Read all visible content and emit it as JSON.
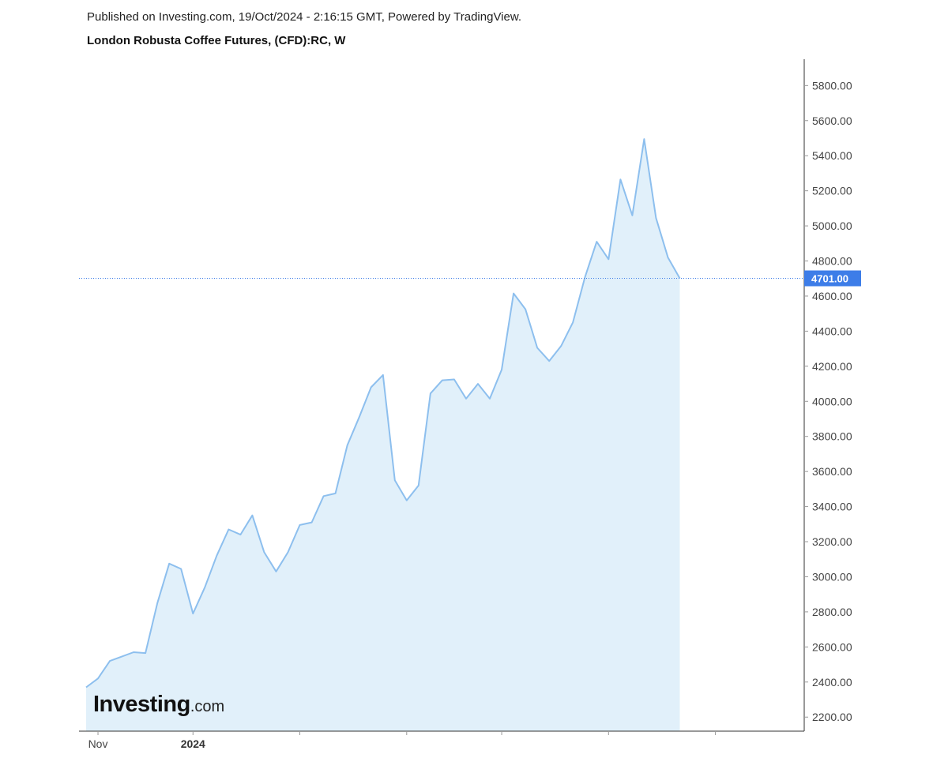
{
  "header": {
    "published": "Published on Investing.com, 19/Oct/2024 - 2:16:15 GMT, Powered by TradingView.",
    "title": "London Robusta Coffee Futures, (CFD):RC, W"
  },
  "logo": {
    "main": "Investing",
    "suffix": ".com"
  },
  "colors": {
    "line": "#8dbfee",
    "fill": "#e1f0fa",
    "last_price_bg": "#3d7de8",
    "axis": "#333333",
    "grid_tick": "#999999"
  },
  "chart_data": {
    "type": "area",
    "title": "London Robusta Coffee Futures, (CFD):RC, W",
    "xlabel": "",
    "ylabel": "",
    "ylim": [
      2120,
      5950
    ],
    "yticks": [
      "2200.00",
      "2400.00",
      "2600.00",
      "2800.00",
      "3000.00",
      "3200.00",
      "3400.00",
      "3600.00",
      "3800.00",
      "4000.00",
      "4200.00",
      "4400.00",
      "4600.00",
      "4800.00",
      "5000.00",
      "5200.00",
      "5400.00",
      "5600.00",
      "5800.00"
    ],
    "x_labels": [
      {
        "label": "Nov",
        "index": 1,
        "bold": false
      },
      {
        "label": "2024",
        "index": 9,
        "bold": true
      }
    ],
    "minor_tick_indices": [
      18,
      27,
      35,
      44,
      53
    ],
    "x_index_max": 60,
    "last_price": 4701,
    "last_price_label": "4701.00",
    "values": [
      2370,
      2420,
      2520,
      2545,
      2570,
      2565,
      2850,
      3075,
      3045,
      2790,
      2940,
      3120,
      3270,
      3240,
      3350,
      3140,
      3030,
      3140,
      3295,
      3310,
      3460,
      3475,
      3750,
      3910,
      4080,
      4150,
      3550,
      3435,
      3520,
      4045,
      4120,
      4125,
      4015,
      4100,
      4015,
      4180,
      4615,
      4525,
      4305,
      4230,
      4315,
      4450,
      4705,
      4910,
      4810,
      5265,
      5060,
      5495,
      5045,
      4820,
      4701
    ]
  }
}
